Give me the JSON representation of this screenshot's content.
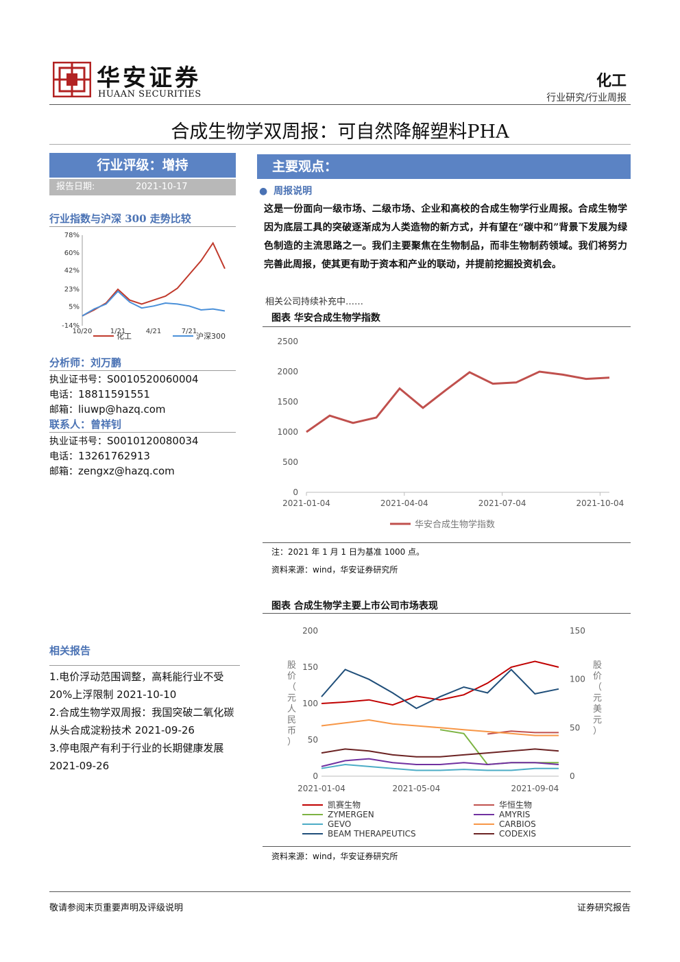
{
  "header": {
    "logo_cn": "华安证券",
    "logo_en": "HUAAN SECURITIES",
    "sector": "化工",
    "category": "行业研究/行业周报"
  },
  "title": "合成生物学双周报：可自然降解塑料PHA",
  "rating": {
    "label": "行业评级：增持",
    "date_label": "报告日期:",
    "date": "2021-10-17"
  },
  "comparison": {
    "title": "行业指数与沪深 300 走势比较"
  },
  "analyst": {
    "label": "分析师：刘万鹏",
    "cert_label": "执业证书号：",
    "cert": "S0010520060004",
    "phone_label": "电话：",
    "phone": "18811591551",
    "email_label": "邮箱：",
    "email": "liuwp@hazq.com"
  },
  "contact": {
    "label": "联系人：曾祥钊",
    "cert_label": "执业证书号：",
    "cert": "S0010120080034",
    "phone_label": "电话：",
    "phone": "13261762913",
    "email_label": "邮箱：",
    "email": "zengxz@hazq.com"
  },
  "related": {
    "title": "相关报告",
    "items": [
      "1.电价浮动范围调整，高耗能行业不受 20%上浮限制 2021-10-10",
      "2.合成生物学双周报：我国突破二氧化碳从头合成淀粉技术 2021-09-26",
      "3.停电限产有利于行业的长期健康发展 2021-09-26"
    ]
  },
  "main": {
    "heading": "主要观点：",
    "sub": "周报说明",
    "body": "这是一份面向一级市场、二级市场、企业和高校的合成生物学行业周报。合成生物学因为底层工具的突破逐渐成为人类造物的新方式，并有望在“碳中和”背景下发展为绿色制造的主流思路之一。我们主要聚焦在生物制品，而非生物制药领域。我们将努力完善此周报，使其更有助于资本和产业的联动，并提前挖掘投资机会。",
    "note": "相关公司持续补充中……"
  },
  "figure1": {
    "caption": "图表 华安合成生物学指数",
    "note": "注：2021 年 1 月 1 日为基准 1000 点。",
    "source": "资料来源：wind，华安证券研究所"
  },
  "figure2": {
    "caption": "图表 合成生物学主要上市公司市场表现",
    "source": "资料来源：wind，华安证券研究所"
  },
  "footer": {
    "left": "敬请参阅末页重要声明及评级说明",
    "right": "证券研究报告"
  },
  "chart_data": [
    {
      "type": "line",
      "x": [
        "10/20",
        "11/20",
        "12/20",
        "1/21",
        "2/21",
        "3/21",
        "4/21",
        "5/21",
        "6/21",
        "7/21",
        "8/21",
        "9/21",
        "10/21"
      ],
      "xticks": [
        "10/20",
        "1/21",
        "4/21",
        "7/21"
      ],
      "yticks": [
        "78%",
        "60%",
        "42%",
        "23%",
        "5%",
        "-14%"
      ],
      "ylim": [
        -14,
        78
      ],
      "series": [
        {
          "name": "化工",
          "color": "#c0392b",
          "values": [
            -4,
            2,
            9,
            23,
            12,
            8,
            12,
            16,
            24,
            38,
            52,
            70,
            44
          ]
        },
        {
          "name": "沪深300",
          "color": "#4a90d9",
          "values": [
            -4,
            3,
            8,
            21,
            10,
            4,
            6,
            9,
            8,
            6,
            2,
            3,
            1
          ]
        }
      ]
    },
    {
      "type": "line",
      "x": [
        "2021-01-04",
        "2021-02-01",
        "2021-03-01",
        "2021-03-20",
        "2021-04-10",
        "2021-05-01",
        "2021-06-01",
        "2021-07-01",
        "2021-07-20",
        "2021-08-10",
        "2021-09-01",
        "2021-09-20",
        "2021-10-04",
        "2021-10-14"
      ],
      "xticks": [
        "2021-01-04",
        "2021-04-04",
        "2021-07-04",
        "2021-10-04"
      ],
      "yticks": [
        0,
        500,
        1000,
        1500,
        2000,
        2500
      ],
      "ylim": [
        0,
        2500
      ],
      "series": [
        {
          "name": "华安合成生物学指数",
          "color": "#c0504d",
          "values": [
            1000,
            1270,
            1150,
            1240,
            1720,
            1400,
            1700,
            1990,
            1800,
            1820,
            2000,
            1950,
            1880,
            1900
          ]
        }
      ]
    },
    {
      "type": "line",
      "x": [
        "2021-01-04",
        "2021-02-01",
        "2021-03-01",
        "2021-04-01",
        "2021-05-04",
        "2021-06-01",
        "2021-07-01",
        "2021-08-01",
        "2021-09-04",
        "2021-10-01",
        "2021-10-14"
      ],
      "xticks": [
        "2021-01-04",
        "2021-05-04",
        "2021-09-04"
      ],
      "yticks_left": [
        0,
        50,
        100,
        150,
        200
      ],
      "yticks_right": [
        0,
        50,
        100,
        150
      ],
      "ylabel_left": "股价（元人民币）",
      "ylabel_right": "股价（元美元）",
      "series": [
        {
          "name": "凯赛生物",
          "color": "#c00000",
          "axis": "left",
          "values": [
            100,
            102,
            105,
            98,
            110,
            105,
            112,
            128,
            150,
            158,
            150
          ]
        },
        {
          "name": "华恒生物",
          "color": "#c0504d",
          "axis": "left",
          "values": [
            null,
            null,
            null,
            null,
            null,
            null,
            null,
            58,
            62,
            60,
            60
          ]
        },
        {
          "name": "ZYMERGEN",
          "color": "#7cb342",
          "axis": "right",
          "values": [
            null,
            null,
            null,
            null,
            null,
            48,
            44,
            12,
            14,
            14,
            14
          ]
        },
        {
          "name": "AMYRIS",
          "color": "#7030a0",
          "axis": "right",
          "values": [
            10,
            16,
            18,
            14,
            12,
            12,
            14,
            12,
            14,
            14,
            12
          ]
        },
        {
          "name": "GEVO",
          "color": "#4bacc6",
          "axis": "right",
          "values": [
            8,
            12,
            10,
            8,
            6,
            6,
            7,
            6,
            6,
            8,
            8
          ]
        },
        {
          "name": "CARBIOS",
          "color": "#f79646",
          "axis": "right",
          "values": [
            52,
            55,
            58,
            54,
            52,
            50,
            48,
            46,
            44,
            42,
            42
          ]
        },
        {
          "name": "BEAM THERAPEUTICS",
          "color": "#1f4e79",
          "axis": "right",
          "values": [
            82,
            110,
            100,
            86,
            70,
            82,
            92,
            86,
            110,
            85,
            90
          ]
        },
        {
          "name": "CODEXIS",
          "color": "#6b2222",
          "axis": "right",
          "values": [
            24,
            28,
            26,
            22,
            20,
            20,
            22,
            24,
            26,
            28,
            26
          ]
        }
      ]
    }
  ]
}
